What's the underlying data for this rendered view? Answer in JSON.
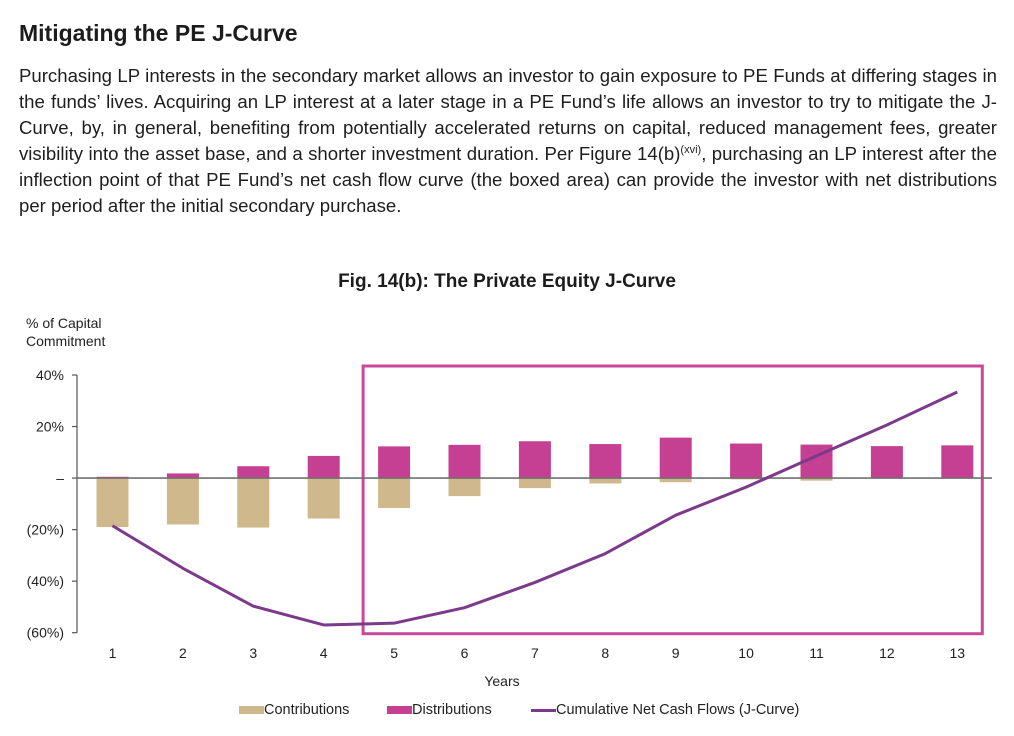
{
  "document": {
    "heading": "Mitigating the PE J-Curve",
    "paragraph_before_ref": "Purchasing LP interests in the secondary market allows an investor to gain exposure to PE Funds at differing stages in the funds’ lives. Acquiring an LP interest at a later stage in a PE Fund’s life allows an investor to try to mitigate the J-Curve, by, in general, benefiting from potentially accelerated returns on capital, reduced management fees, greater visibility into the asset base, and a shorter investment duration. Per Figure 14(b)",
    "paragraph_ref": "(xvi)",
    "paragraph_after_ref": ", purchasing an LP interest after the inflection point of that PE Fund’s net cash flow curve (the boxed area) can provide the investor with net distributions per period after the initial secondary purchase."
  },
  "chart_data": {
    "type": "bar",
    "title": "Fig. 14(b): The Private Equity J-Curve",
    "ylabel_line1": "% of Capital",
    "ylabel_line2": "Commitment",
    "xlabel": "Years",
    "ylim": [
      -60,
      40
    ],
    "yticks": [
      40,
      20,
      0,
      -20,
      -40,
      -60
    ],
    "ytick_labels": [
      "40%",
      "20%",
      "–",
      "(20%)",
      "(40%)",
      "(60%)"
    ],
    "categories": [
      "1",
      "2",
      "3",
      "4",
      "5",
      "6",
      "7",
      "8",
      "9",
      "10",
      "11",
      "12",
      "13"
    ],
    "series": [
      {
        "name": "Contributions",
        "kind": "bar",
        "color": "#CFB88C",
        "values": [
          -19,
          -18,
          -19.2,
          -15.7,
          -11.6,
          -7,
          -3.9,
          -2.1,
          -1.6,
          -0.5,
          -1,
          0,
          0
        ]
      },
      {
        "name": "Distributions",
        "kind": "bar",
        "color": "#C54092",
        "values": [
          0.5,
          1.8,
          4.6,
          8.6,
          12.3,
          12.9,
          14.3,
          13.2,
          15.7,
          13.4,
          13,
          12.4,
          12.7
        ]
      },
      {
        "name": "Cumulative Net Cash Flows (J-Curve)",
        "kind": "line",
        "color": "#7B3A8A",
        "values": [
          -18.5,
          -35,
          -49.7,
          -57,
          -56.3,
          -50.3,
          -40.5,
          -29.3,
          -14.4,
          -3.5,
          8.6,
          20.6,
          33.4
        ]
      }
    ],
    "highlight_box": {
      "from_year": "5",
      "to_year": "13",
      "ymin": -60,
      "ymax": 40,
      "color": "#C9489A"
    },
    "legend": {
      "placement": "bottom",
      "items": [
        "Contributions",
        "Distributions",
        "Cumulative Net Cash Flows (J-Curve)"
      ]
    },
    "grid": false
  }
}
